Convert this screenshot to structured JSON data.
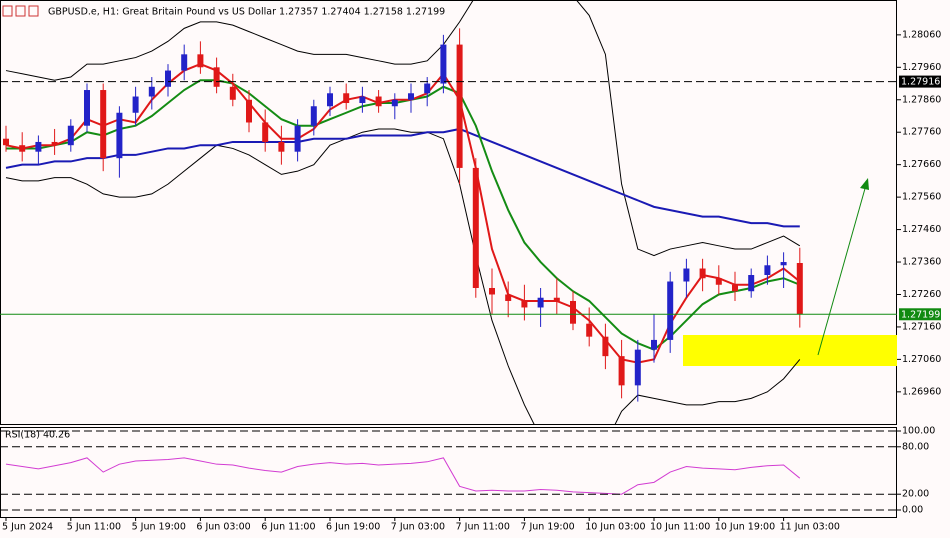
{
  "chart_data": [
    {
      "type": "candlestick",
      "title": "GBPUSD.e, H1:  Great Britain Pound vs US Dollar  1.27357 1.27404 1.27158 1.27199",
      "categories": [
        "5 Jun 2024",
        null,
        null,
        null,
        "5 Jun 11:00",
        null,
        null,
        null,
        "5 Jun 19:00",
        null,
        null,
        null,
        "6 Jun 03:00",
        null,
        null,
        null,
        "6 Jun 11:00",
        null,
        null,
        null,
        "6 Jun 19:00",
        null,
        null,
        null,
        "7 Jun 03:00",
        null,
        null,
        null,
        "7 Jun 11:00",
        null,
        null,
        null,
        "7 Jun 19:00",
        null,
        null,
        null,
        "10 Jun 03:00",
        null,
        null,
        null,
        "10 Jun 11:00",
        null,
        null,
        null,
        "10 Jun 19:00",
        null,
        null,
        null,
        "11 Jun 03:00",
        null
      ],
      "open": [
        1.2774,
        1.2772,
        1.277,
        1.2773,
        1.2772,
        1.2778,
        1.2789,
        1.2768,
        1.2782,
        1.2787,
        1.279,
        1.2795,
        1.28,
        1.2796,
        1.279,
        1.2786,
        1.2779,
        1.2773,
        1.277,
        1.2778,
        1.2784,
        1.2788,
        1.2785,
        1.2787,
        1.2784,
        1.2786,
        1.2788,
        1.2791,
        1.2803,
        1.2765,
        1.2728,
        1.2726,
        1.2724,
        1.2722,
        1.2725,
        1.2724,
        1.2717,
        1.2713,
        1.2707,
        1.2698,
        1.2709,
        1.2712,
        1.273,
        1.2734,
        1.2731,
        1.2729,
        1.2727,
        1.2732,
        1.2735,
        1.27357
      ],
      "high": [
        1.2778,
        1.2776,
        1.2775,
        1.2777,
        1.278,
        1.2791,
        1.2791,
        1.2784,
        1.279,
        1.2793,
        1.2797,
        1.2803,
        1.2804,
        1.2799,
        1.2794,
        1.2789,
        1.2783,
        1.2778,
        1.278,
        1.2786,
        1.279,
        1.2791,
        1.279,
        1.2789,
        1.2788,
        1.2791,
        1.2793,
        1.2806,
        1.2808,
        1.2768,
        1.2734,
        1.273,
        1.2729,
        1.2728,
        1.2731,
        1.2727,
        1.2722,
        1.2717,
        1.2712,
        1.2712,
        1.272,
        1.2733,
        1.2737,
        1.2737,
        1.2735,
        1.2733,
        1.2734,
        1.2738,
        1.2739,
        1.27404
      ],
      "low": [
        1.277,
        1.2767,
        1.2766,
        1.2769,
        1.277,
        1.2776,
        1.2764,
        1.2762,
        1.2778,
        1.2783,
        1.2787,
        1.2792,
        1.2794,
        1.2788,
        1.2784,
        1.2776,
        1.277,
        1.2766,
        1.2767,
        1.2775,
        1.2781,
        1.2783,
        1.2782,
        1.2782,
        1.278,
        1.2782,
        1.2784,
        1.2788,
        1.276,
        1.2725,
        1.272,
        1.2719,
        1.2718,
        1.2716,
        1.272,
        1.2715,
        1.271,
        1.2703,
        1.2694,
        1.2693,
        1.2705,
        1.2708,
        1.2725,
        1.2727,
        1.2726,
        1.2724,
        1.2725,
        1.2729,
        1.2728,
        1.27158
      ],
      "close": [
        1.2772,
        1.277,
        1.2773,
        1.2772,
        1.2778,
        1.2789,
        1.2768,
        1.2782,
        1.2787,
        1.279,
        1.2795,
        1.28,
        1.2796,
        1.279,
        1.2786,
        1.2779,
        1.2773,
        1.277,
        1.2778,
        1.2784,
        1.2788,
        1.2785,
        1.2787,
        1.2784,
        1.2786,
        1.2788,
        1.2791,
        1.2803,
        1.2765,
        1.2728,
        1.2726,
        1.2724,
        1.2722,
        1.2725,
        1.2724,
        1.2717,
        1.2713,
        1.2707,
        1.2698,
        1.2709,
        1.2712,
        1.273,
        1.2734,
        1.2731,
        1.2729,
        1.2727,
        1.2732,
        1.2735,
        1.2736,
        1.27199
      ],
      "up_color": "#2323c8",
      "down_color": "#e01818",
      "overlays": [
        {
          "color": "#000000",
          "values": [
            1.2795,
            1.2794,
            1.2793,
            1.2792,
            1.2793,
            1.2797,
            1.2797,
            1.2798,
            1.2799,
            1.2801,
            1.2804,
            1.2808,
            1.281,
            1.281,
            1.2809,
            1.2807,
            1.2805,
            1.2803,
            1.2801,
            1.28,
            1.28,
            1.28,
            1.2799,
            1.2798,
            1.2797,
            1.2797,
            1.2798,
            1.2803,
            1.281,
            1.2818,
            1.2822,
            1.2824,
            1.2824,
            1.2823,
            1.2821,
            1.2818,
            1.2812,
            1.28,
            1.276,
            1.274,
            1.2738,
            1.274,
            1.2741,
            1.2742,
            1.2741,
            1.274,
            1.274,
            1.2742,
            1.2744,
            1.2741
          ]
        },
        {
          "color": "#000000",
          "values": [
            1.2762,
            1.2761,
            1.2761,
            1.2762,
            1.2762,
            1.276,
            1.2757,
            1.2756,
            1.2756,
            1.2757,
            1.276,
            1.2764,
            1.2768,
            1.2772,
            1.2771,
            1.2769,
            1.2766,
            1.2763,
            1.2764,
            1.2766,
            1.2772,
            1.2774,
            1.2776,
            1.2777,
            1.2777,
            1.2776,
            1.2776,
            1.2774,
            1.276,
            1.2738,
            1.2718,
            1.2704,
            1.2692,
            1.2682,
            1.2676,
            1.2672,
            1.2673,
            1.268,
            1.269,
            1.2695,
            1.2694,
            1.2693,
            1.2692,
            1.2692,
            1.2693,
            1.2693,
            1.2694,
            1.2696,
            1.27,
            1.2706
          ]
        },
        {
          "color": "#1a1ab4",
          "values": [
            1.2765,
            1.2766,
            1.2766,
            1.2767,
            1.2767,
            1.2768,
            1.2768,
            1.2769,
            1.2769,
            1.277,
            1.2771,
            1.2771,
            1.2772,
            1.2772,
            1.2773,
            1.2773,
            1.2773,
            1.2773,
            1.2773,
            1.2774,
            1.2774,
            1.2774,
            1.2775,
            1.2775,
            1.2775,
            1.2775,
            1.2776,
            1.2776,
            1.2777,
            1.2775,
            1.2773,
            1.2771,
            1.2769,
            1.2767,
            1.2765,
            1.2763,
            1.2761,
            1.2759,
            1.2757,
            1.2755,
            1.2753,
            1.2752,
            1.2751,
            1.275,
            1.275,
            1.2749,
            1.2748,
            1.2748,
            1.2747,
            1.2747
          ]
        },
        {
          "color": "#148c14",
          "values": [
            1.2771,
            1.2771,
            1.2771,
            1.2772,
            1.2773,
            1.2776,
            1.2775,
            1.2777,
            1.2778,
            1.2781,
            1.2785,
            1.2789,
            1.2792,
            1.2792,
            1.2791,
            1.2788,
            1.2784,
            1.278,
            1.2778,
            1.2778,
            1.278,
            1.2782,
            1.2784,
            1.2785,
            1.2785,
            1.2786,
            1.2787,
            1.279,
            1.2788,
            1.2778,
            1.2764,
            1.2752,
            1.2742,
            1.2736,
            1.2731,
            1.2727,
            1.2724,
            1.2719,
            1.2714,
            1.2711,
            1.2709,
            1.2713,
            1.2718,
            1.2723,
            1.2726,
            1.2727,
            1.2728,
            1.273,
            1.2731,
            1.2729
          ]
        },
        {
          "color": "#e01818",
          "values": [
            1.2772,
            1.2771,
            1.2772,
            1.2772,
            1.2774,
            1.278,
            1.2778,
            1.278,
            1.2779,
            1.2786,
            1.2791,
            1.2795,
            1.2797,
            1.2795,
            1.2791,
            1.2785,
            1.2779,
            1.2774,
            1.2774,
            1.2777,
            1.2783,
            1.2786,
            1.2787,
            1.2785,
            1.2786,
            1.2786,
            1.2788,
            1.2794,
            1.2786,
            1.2765,
            1.274,
            1.2726,
            1.2724,
            1.2724,
            1.2724,
            1.2722,
            1.2718,
            1.2712,
            1.2706,
            1.2705,
            1.2706,
            1.2717,
            1.2725,
            1.2732,
            1.2731,
            1.2729,
            1.2729,
            1.2731,
            1.2734,
            1.273
          ]
        }
      ],
      "hlines": [
        {
          "value": 1.27916,
          "label": "1.27916",
          "color": "#000000",
          "dashed": true
        },
        {
          "value": 1.27199,
          "label": "1.27199",
          "color": "#118a11",
          "dashed": false
        }
      ],
      "ylim": [
        1.26864,
        1.28152
      ],
      "yticks": [
        {
          "value": 1.2696,
          "label": "1.26960"
        },
        {
          "value": 1.2706,
          "label": "1.27060"
        },
        {
          "value": 1.2716,
          "label": "1.27160"
        },
        {
          "value": 1.2726,
          "label": "1.27260"
        },
        {
          "value": 1.2736,
          "label": "1.27360"
        },
        {
          "value": 1.2746,
          "label": "1.27460"
        },
        {
          "value": 1.2756,
          "label": "1.27560"
        },
        {
          "value": 1.2766,
          "label": "1.27660"
        },
        {
          "value": 1.2776,
          "label": "1.27760"
        },
        {
          "value": 1.2786,
          "label": "1.27860"
        },
        {
          "value": 1.2796,
          "label": "1.27960"
        },
        {
          "value": 1.2806,
          "label": "1.28060"
        }
      ]
    },
    {
      "type": "line",
      "title": "RSI(18) 40.26",
      "color": "#d23cd2",
      "values": [
        58,
        55,
        52,
        56,
        60,
        66,
        48,
        58,
        62,
        63,
        64,
        66,
        62,
        58,
        57,
        53,
        50,
        48,
        55,
        58,
        60,
        58,
        59,
        57,
        58,
        59,
        61,
        66,
        30,
        24,
        25,
        24,
        24,
        26,
        25,
        23,
        22,
        21,
        20,
        32,
        35,
        48,
        55,
        53,
        52,
        51,
        54,
        56,
        57,
        40.26
      ],
      "ylim": [
        0,
        100
      ],
      "yticks": [
        {
          "value": 100,
          "label": "100.00"
        },
        {
          "value": 80,
          "label": "80.00"
        },
        {
          "value": 20,
          "label": "20.00"
        },
        {
          "value": 0,
          "label": "0.00"
        }
      ]
    }
  ]
}
